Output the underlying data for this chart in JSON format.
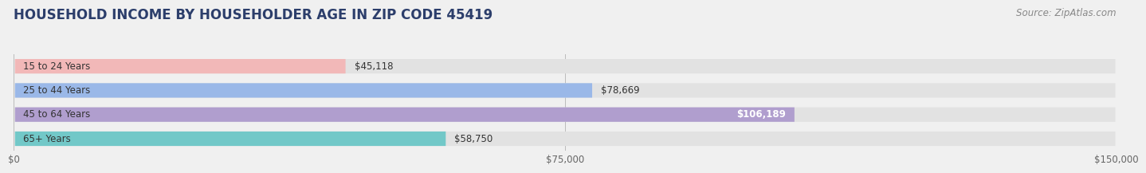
{
  "title": "HOUSEHOLD INCOME BY HOUSEHOLDER AGE IN ZIP CODE 45419",
  "source": "Source: ZipAtlas.com",
  "categories": [
    "15 to 24 Years",
    "25 to 44 Years",
    "45 to 64 Years",
    "65+ Years"
  ],
  "values": [
    45118,
    78669,
    106189,
    58750
  ],
  "bar_colors": [
    "#f2b8b8",
    "#9ab8e8",
    "#b09ece",
    "#72c8c8"
  ],
  "label_colors": [
    "#555555",
    "#555555",
    "#ffffff",
    "#555555"
  ],
  "value_labels": [
    "$45,118",
    "$78,669",
    "$106,189",
    "$58,750"
  ],
  "xlim": [
    0,
    150000
  ],
  "xticks": [
    0,
    75000,
    150000
  ],
  "xtick_labels": [
    "$0",
    "$75,000",
    "$150,000"
  ],
  "title_color": "#2c3e6b",
  "source_color": "#888888",
  "background_color": "#f0f0f0",
  "bar_background_color": "#e2e2e2",
  "title_fontsize": 12,
  "source_fontsize": 8.5,
  "label_fontsize": 8.5,
  "value_fontsize": 8.5,
  "tick_fontsize": 8.5,
  "bar_height": 0.6
}
